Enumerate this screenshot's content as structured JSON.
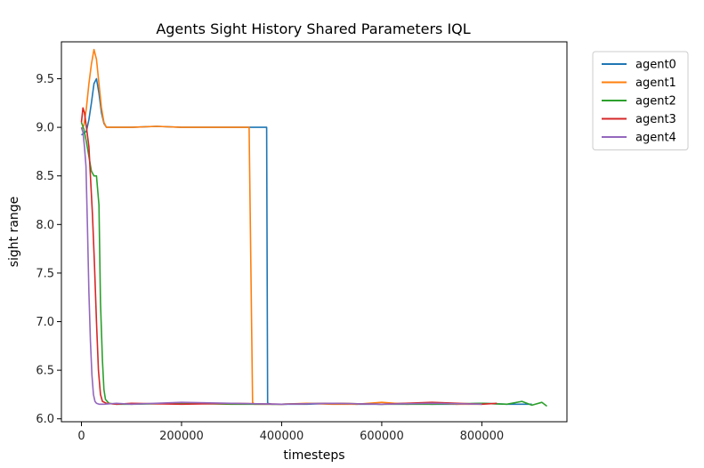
{
  "chart_data": {
    "type": "line",
    "title": "Agents Sight History Shared Parameters IQL",
    "xlabel": "timesteps",
    "ylabel": "sight range",
    "xlim": [
      -40000,
      970000
    ],
    "ylim": [
      5.97,
      9.88
    ],
    "xticks": [
      0,
      200000,
      400000,
      600000,
      800000
    ],
    "xtick_labels": [
      "0",
      "200000",
      "400000",
      "600000",
      "800000"
    ],
    "yticks": [
      6.0,
      6.5,
      7.0,
      7.5,
      8.0,
      8.5,
      9.0,
      9.5
    ],
    "ytick_labels": [
      "6.0",
      "6.5",
      "7.0",
      "7.5",
      "8.0",
      "8.5",
      "9.0",
      "9.5"
    ],
    "grid": false,
    "legend_placement": "outside-top-right",
    "series": [
      {
        "name": "agent0",
        "color": "#1f77b4",
        "x": [
          0,
          10000,
          15000,
          20000,
          25000,
          30000,
          35000,
          40000,
          45000,
          50000,
          60000,
          100000,
          150000,
          200000,
          250000,
          300000,
          340000,
          350000,
          370000,
          372000,
          380000,
          450000,
          500000,
          550000,
          600000,
          650000,
          700000,
          750000,
          800000,
          850000,
          900000
        ],
        "y": [
          8.92,
          8.96,
          9.08,
          9.25,
          9.45,
          9.5,
          9.35,
          9.15,
          9.04,
          9.0,
          9.0,
          9.0,
          9.01,
          9.0,
          9.0,
          9.0,
          9.0,
          9.0,
          9.0,
          6.16,
          6.15,
          6.15,
          6.16,
          6.15,
          6.15,
          6.16,
          6.15,
          6.15,
          6.16,
          6.15,
          6.15
        ]
      },
      {
        "name": "agent1",
        "color": "#ff7f0e",
        "x": [
          0,
          5000,
          10000,
          15000,
          20000,
          25000,
          30000,
          35000,
          40000,
          45000,
          50000,
          60000,
          100000,
          150000,
          200000,
          250000,
          300000,
          335000,
          342000,
          345000,
          400000,
          450000,
          500000,
          550000,
          600000,
          650000,
          700000,
          750000,
          800000
        ],
        "y": [
          8.98,
          9.02,
          9.2,
          9.45,
          9.65,
          9.8,
          9.7,
          9.45,
          9.2,
          9.05,
          9.0,
          9.0,
          9.0,
          9.01,
          9.0,
          9.0,
          9.0,
          9.0,
          6.17,
          6.15,
          6.15,
          6.16,
          6.15,
          6.15,
          6.17,
          6.15,
          6.16,
          6.15,
          6.15
        ]
      },
      {
        "name": "agent2",
        "color": "#2ca02c",
        "x": [
          0,
          5000,
          10000,
          15000,
          20000,
          25000,
          30000,
          35000,
          38000,
          42000,
          45000,
          48000,
          55000,
          70000,
          100000,
          200000,
          300000,
          400000,
          500000,
          600000,
          700000,
          800000,
          850000,
          880000,
          900000,
          920000,
          930000
        ],
        "y": [
          9.05,
          8.98,
          8.85,
          8.7,
          8.55,
          8.5,
          8.5,
          8.2,
          7.2,
          6.6,
          6.3,
          6.2,
          6.16,
          6.15,
          6.15,
          6.16,
          6.15,
          6.15,
          6.16,
          6.15,
          6.15,
          6.16,
          6.15,
          6.18,
          6.14,
          6.17,
          6.13
        ]
      },
      {
        "name": "agent3",
        "color": "#d62728",
        "x": [
          0,
          3000,
          6000,
          10000,
          15000,
          18000,
          22000,
          26000,
          30000,
          34000,
          38000,
          42000,
          50000,
          70000,
          100000,
          200000,
          300000,
          400000,
          500000,
          600000,
          700000,
          800000,
          830000
        ],
        "y": [
          9.05,
          9.2,
          9.15,
          9.0,
          8.8,
          8.5,
          8.1,
          7.6,
          7.0,
          6.5,
          6.25,
          6.18,
          6.16,
          6.15,
          6.16,
          6.15,
          6.16,
          6.15,
          6.16,
          6.15,
          6.17,
          6.15,
          6.16
        ]
      },
      {
        "name": "agent4",
        "color": "#9467bd",
        "x": [
          0,
          3000,
          6000,
          9000,
          12000,
          15000,
          18000,
          21000,
          24000,
          27000,
          30000,
          35000,
          45000,
          70000,
          100000,
          200000,
          300000,
          400000,
          500000,
          600000,
          700000,
          800000
        ],
        "y": [
          9.0,
          8.95,
          8.8,
          8.6,
          8.0,
          7.3,
          6.8,
          6.45,
          6.25,
          6.18,
          6.16,
          6.15,
          6.15,
          6.16,
          6.15,
          6.17,
          6.16,
          6.15,
          6.16,
          6.15,
          6.16,
          6.15
        ]
      }
    ]
  }
}
